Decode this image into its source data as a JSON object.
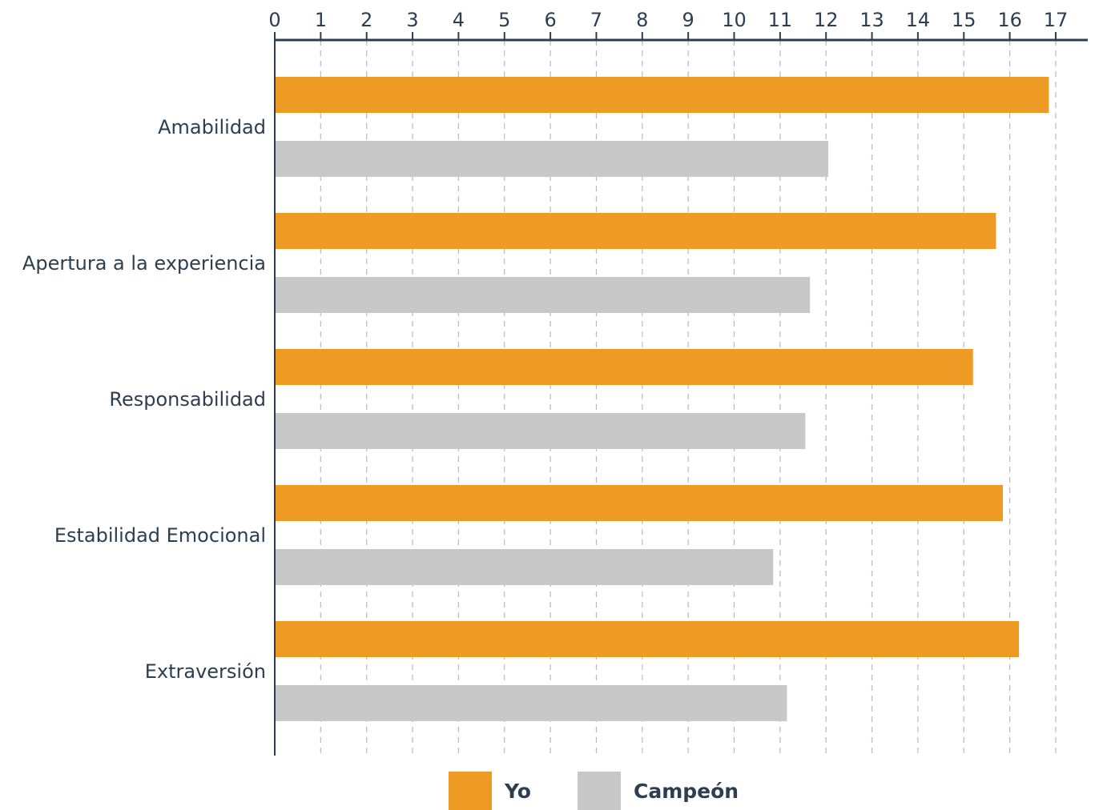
{
  "chart_data": {
    "type": "bar",
    "orientation": "horizontal",
    "categories": [
      "Amabilidad",
      "Apertura a la experiencia",
      "Responsabilidad",
      "Estabilidad Emocional",
      "Extraversión"
    ],
    "series": [
      {
        "name": "Yo",
        "color": "#ee9b26",
        "values": [
          16.85,
          15.7,
          15.2,
          15.85,
          16.2
        ]
      },
      {
        "name": "Campeón",
        "color": "#c8c8c8",
        "values": [
          12.05,
          11.65,
          11.55,
          10.85,
          11.15
        ]
      }
    ],
    "xlim": [
      0,
      17
    ],
    "xticks": [
      "0",
      "1",
      "2",
      "3",
      "4",
      "5",
      "6",
      "7",
      "8",
      "9",
      "10",
      "11",
      "12",
      "13",
      "14",
      "15",
      "16",
      "17"
    ],
    "axis_position": "top",
    "grid": true,
    "legend_placement": "bottom-center",
    "title": "",
    "xlabel": "",
    "ylabel": ""
  }
}
